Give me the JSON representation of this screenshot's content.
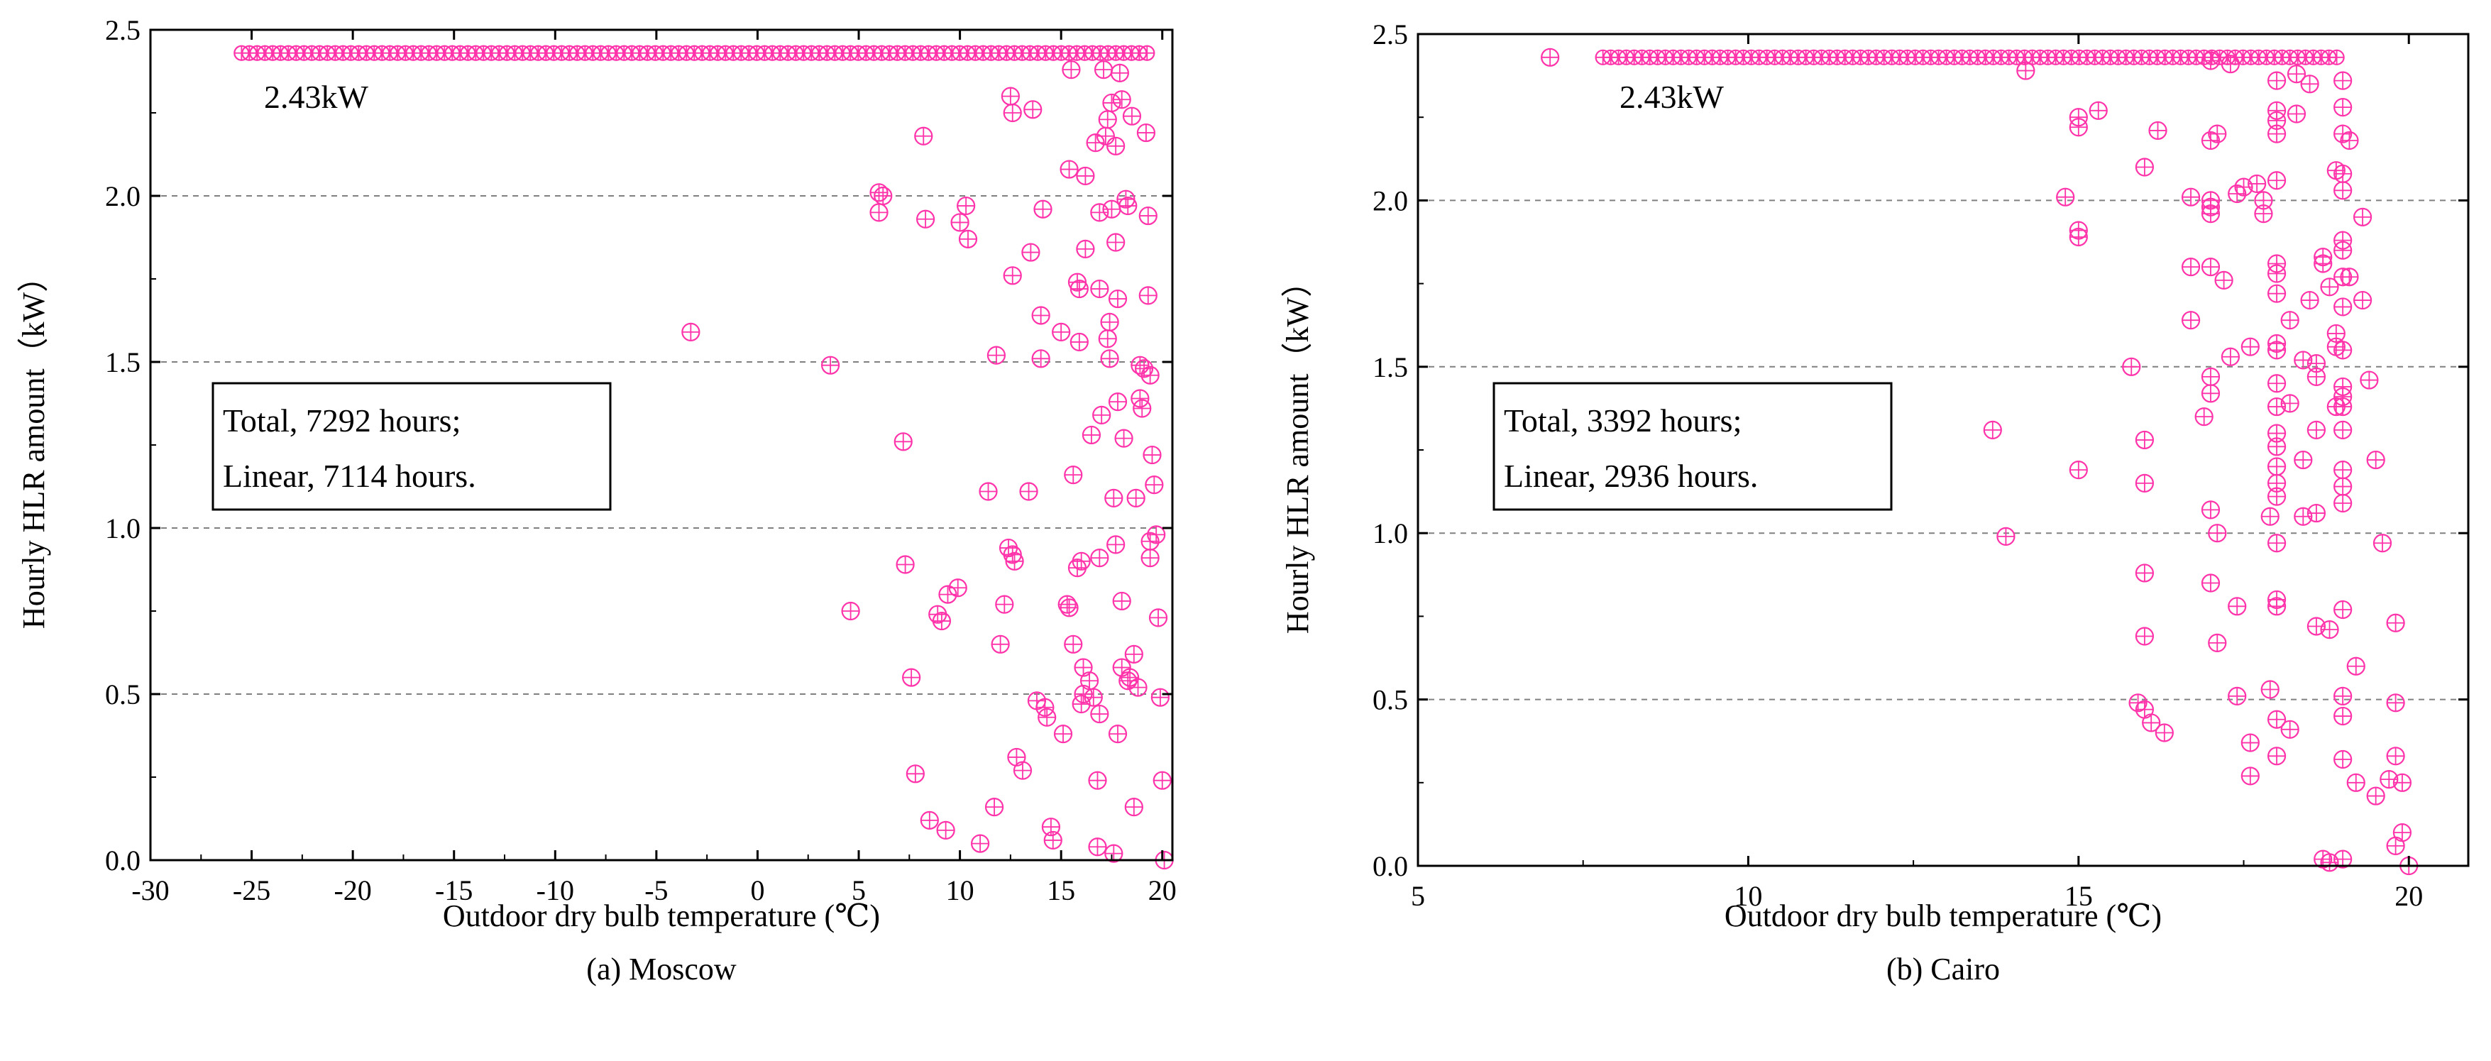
{
  "chart_data": [
    {
      "type": "scatter",
      "caption": "(a) Moscow",
      "xlabel": "Outdoor dry bulb temperature (℃)",
      "ylabel": "Hourly HLR amount（kW）",
      "xlim": [
        -30,
        20.5
      ],
      "ylim": [
        0,
        2.5
      ],
      "xticks": [
        -30,
        -25,
        -20,
        -15,
        -10,
        -5,
        0,
        5,
        10,
        15,
        20
      ],
      "xtick_labels": [
        "-30",
        "-25",
        "-20",
        "-15",
        "-10",
        "-5",
        "0",
        "5",
        "10",
        "15",
        "20"
      ],
      "yticks": [
        0,
        0.5,
        1.0,
        1.5,
        2.0,
        2.5
      ],
      "ytick_labels": [
        "0.0",
        "0.5",
        "1.0",
        "1.5",
        "2.0",
        "2.5"
      ],
      "gridlines_y": [
        0.5,
        1.0,
        1.5,
        2.0
      ],
      "marker_color": "#ff33aa",
      "annotation": "2.43kW",
      "max_value": 2.43,
      "max_line_x": [
        -25.5,
        19.5
      ],
      "note_lines": [
        "Total,   7292 hours;",
        "Linear, 7114 hours."
      ],
      "points": [
        [
          -3.3,
          1.59
        ],
        [
          3.6,
          1.49
        ],
        [
          4.6,
          0.75
        ],
        [
          6,
          2.01
        ],
        [
          6.2,
          2.0
        ],
        [
          6,
          1.95
        ],
        [
          7.2,
          1.26
        ],
        [
          7.3,
          0.89
        ],
        [
          7.6,
          0.55
        ],
        [
          7.8,
          0.26
        ],
        [
          8.2,
          2.18
        ],
        [
          8.3,
          1.93
        ],
        [
          8.5,
          0.12
        ],
        [
          8.9,
          0.74
        ],
        [
          9.1,
          0.72
        ],
        [
          9.3,
          0.09
        ],
        [
          9.4,
          0.8
        ],
        [
          9.9,
          0.82
        ],
        [
          10,
          1.92
        ],
        [
          10.3,
          1.97
        ],
        [
          10.4,
          1.87
        ],
        [
          11,
          0.05
        ],
        [
          11.4,
          1.11
        ],
        [
          11.7,
          0.16
        ],
        [
          11.8,
          1.52
        ],
        [
          12,
          0.65
        ],
        [
          12.2,
          0.77
        ],
        [
          12.5,
          2.3
        ],
        [
          12.6,
          2.25
        ],
        [
          12.4,
          0.94
        ],
        [
          12.6,
          0.92
        ],
        [
          12.7,
          0.9
        ],
        [
          12.6,
          1.76
        ],
        [
          12.8,
          0.31
        ],
        [
          13.1,
          0.27
        ],
        [
          13.4,
          1.11
        ],
        [
          13.6,
          2.26
        ],
        [
          13.5,
          1.83
        ],
        [
          13.8,
          0.48
        ],
        [
          14,
          1.51
        ],
        [
          14,
          1.64
        ],
        [
          14.1,
          1.96
        ],
        [
          14.2,
          0.46
        ],
        [
          14.3,
          0.43
        ],
        [
          14.5,
          0.1
        ],
        [
          14.6,
          0.06
        ],
        [
          15,
          1.59
        ],
        [
          15.1,
          0.38
        ],
        [
          15.3,
          0.77
        ],
        [
          15.4,
          0.76
        ],
        [
          15.5,
          2.38
        ],
        [
          15.4,
          2.08
        ],
        [
          15.6,
          1.16
        ],
        [
          15.6,
          0.65
        ],
        [
          15.8,
          1.74
        ],
        [
          15.9,
          1.72
        ],
        [
          15.9,
          1.56
        ],
        [
          15.8,
          0.88
        ],
        [
          16,
          0.9
        ],
        [
          16.1,
          0.58
        ],
        [
          16.2,
          1.84
        ],
        [
          16.1,
          0.5
        ],
        [
          16,
          0.47
        ],
        [
          16.2,
          2.06
        ],
        [
          16.4,
          0.54
        ],
        [
          16.5,
          1.28
        ],
        [
          16.6,
          0.49
        ],
        [
          16.7,
          2.16
        ],
        [
          16.8,
          0.04
        ],
        [
          16.8,
          0.24
        ],
        [
          16.9,
          1.95
        ],
        [
          16.9,
          1.72
        ],
        [
          16.9,
          0.91
        ],
        [
          17,
          1.34
        ],
        [
          17.1,
          2.38
        ],
        [
          17.2,
          2.18
        ],
        [
          17.3,
          2.23
        ],
        [
          17.3,
          1.57
        ],
        [
          17.4,
          1.62
        ],
        [
          17.4,
          1.51
        ],
        [
          17.5,
          2.28
        ],
        [
          17.5,
          1.96
        ],
        [
          17.6,
          1.09
        ],
        [
          17.6,
          0.02
        ],
        [
          17.7,
          2.15
        ],
        [
          17.7,
          1.86
        ],
        [
          17.7,
          0.95
        ],
        [
          17.8,
          0.38
        ],
        [
          17.8,
          1.38
        ],
        [
          17.8,
          1.69
        ],
        [
          17.9,
          2.37
        ],
        [
          18,
          2.29
        ],
        [
          18,
          0.78
        ],
        [
          18,
          0.58
        ],
        [
          18.1,
          1.27
        ],
        [
          18.2,
          1.99
        ],
        [
          18.3,
          0.54
        ],
        [
          18.3,
          1.97
        ],
        [
          18.4,
          0.55
        ],
        [
          18.5,
          2.24
        ],
        [
          18.6,
          0.62
        ],
        [
          18.6,
          0.16
        ],
        [
          18.7,
          1.09
        ],
        [
          18.8,
          0.52
        ],
        [
          18.9,
          1.49
        ],
        [
          18.9,
          1.39
        ],
        [
          19,
          1.36
        ],
        [
          19.1,
          1.48
        ],
        [
          19.2,
          2.19
        ],
        [
          19.3,
          1.94
        ],
        [
          19.3,
          1.7
        ],
        [
          19.4,
          1.46
        ],
        [
          19.4,
          0.91
        ],
        [
          19.5,
          1.22
        ],
        [
          19.6,
          1.13
        ],
        [
          19.7,
          0.98
        ],
        [
          19.8,
          0.73
        ],
        [
          19.9,
          0.49
        ],
        [
          20,
          0.24
        ],
        [
          20.1,
          0.0
        ],
        [
          19.4,
          0.96
        ],
        [
          16.9,
          0.44
        ]
      ]
    },
    {
      "type": "scatter",
      "caption": "(b) Cairo",
      "xlabel": "Outdoor dry bulb temperature (℃)",
      "ylabel": "Hourly HLR amount（kW）",
      "xlim": [
        5,
        20.9
      ],
      "ylim": [
        0,
        2.5
      ],
      "xticks": [
        5,
        10,
        15,
        20
      ],
      "xtick_labels": [
        "5",
        "10",
        "15",
        "20"
      ],
      "yticks": [
        0,
        0.5,
        1.0,
        1.5,
        2.0,
        2.5
      ],
      "ytick_labels": [
        "0.0",
        "0.5",
        "1.0",
        "1.5",
        "2.0",
        "2.5"
      ],
      "gridlines_y": [
        0.5,
        1.0,
        1.5,
        2.0
      ],
      "marker_color": "#ff33aa",
      "annotation": "2.43kW",
      "max_value": 2.43,
      "max_line_x": [
        7.8,
        19
      ],
      "note_lines": [
        "Total,    3392  hours;",
        "Linear,  2936  hours."
      ],
      "points": [
        [
          7,
          2.43
        ],
        [
          14.2,
          2.39
        ],
        [
          13.7,
          1.31
        ],
        [
          13.9,
          0.99
        ],
        [
          14.8,
          2.01
        ],
        [
          15,
          2.25
        ],
        [
          15,
          2.22
        ],
        [
          15,
          1.91
        ],
        [
          15,
          1.89
        ],
        [
          15,
          1.19
        ],
        [
          15.3,
          2.27
        ],
        [
          15.8,
          1.5
        ],
        [
          15.9,
          0.49
        ],
        [
          16,
          0.47
        ],
        [
          16,
          2.1
        ],
        [
          16,
          1.28
        ],
        [
          16,
          1.15
        ],
        [
          16,
          0.88
        ],
        [
          16,
          0.69
        ],
        [
          16.1,
          0.43
        ],
        [
          16.2,
          2.21
        ],
        [
          16.3,
          0.4
        ],
        [
          16.7,
          2.01
        ],
        [
          16.7,
          1.8
        ],
        [
          16.7,
          1.64
        ],
        [
          17,
          2.42
        ],
        [
          17,
          2.18
        ],
        [
          17,
          2.0
        ],
        [
          17,
          1.98
        ],
        [
          17,
          1.96
        ],
        [
          17,
          1.8
        ],
        [
          17,
          1.47
        ],
        [
          16.9,
          1.35
        ],
        [
          17,
          1.42
        ],
        [
          17,
          1.07
        ],
        [
          17,
          0.85
        ],
        [
          17.1,
          2.2
        ],
        [
          17.1,
          1.0
        ],
        [
          17.1,
          0.67
        ],
        [
          17.2,
          1.76
        ],
        [
          17.3,
          1.53
        ],
        [
          17.3,
          2.41
        ],
        [
          17.4,
          2.02
        ],
        [
          17.4,
          0.78
        ],
        [
          17.4,
          0.51
        ],
        [
          17.5,
          2.04
        ],
        [
          17.6,
          1.56
        ],
        [
          17.6,
          0.37
        ],
        [
          17.6,
          0.27
        ],
        [
          17.7,
          2.05
        ],
        [
          17.8,
          2.0
        ],
        [
          17.8,
          1.96
        ],
        [
          17.9,
          1.05
        ],
        [
          17.9,
          0.53
        ],
        [
          18,
          2.36
        ],
        [
          18,
          2.27
        ],
        [
          18,
          2.24
        ],
        [
          18,
          2.2
        ],
        [
          18,
          2.06
        ],
        [
          18,
          1.81
        ],
        [
          18,
          1.78
        ],
        [
          18,
          1.72
        ],
        [
          18,
          1.57
        ],
        [
          18,
          1.55
        ],
        [
          18,
          1.45
        ],
        [
          18,
          1.38
        ],
        [
          18,
          1.3
        ],
        [
          18,
          1.26
        ],
        [
          18,
          1.2
        ],
        [
          18,
          1.15
        ],
        [
          18,
          1.11
        ],
        [
          18,
          0.97
        ],
        [
          18,
          0.8
        ],
        [
          18,
          0.78
        ],
        [
          18,
          0.44
        ],
        [
          18,
          0.33
        ],
        [
          18.2,
          1.64
        ],
        [
          18.2,
          1.39
        ],
        [
          18.2,
          0.41
        ],
        [
          18.3,
          2.38
        ],
        [
          18.3,
          2.26
        ],
        [
          18.4,
          1.52
        ],
        [
          18.4,
          1.05
        ],
        [
          18.4,
          1.22
        ],
        [
          18.5,
          2.35
        ],
        [
          18.5,
          1.7
        ],
        [
          18.6,
          1.51
        ],
        [
          18.6,
          1.47
        ],
        [
          18.6,
          1.31
        ],
        [
          18.6,
          1.06
        ],
        [
          18.6,
          0.72
        ],
        [
          18.7,
          1.83
        ],
        [
          18.7,
          1.81
        ],
        [
          18.7,
          0.02
        ],
        [
          18.8,
          1.74
        ],
        [
          18.8,
          0.01
        ],
        [
          18.8,
          0.71
        ],
        [
          18.9,
          2.09
        ],
        [
          18.9,
          1.6
        ],
        [
          18.9,
          1.56
        ],
        [
          18.9,
          1.38
        ],
        [
          19,
          2.36
        ],
        [
          19,
          2.28
        ],
        [
          19,
          2.2
        ],
        [
          19,
          2.08
        ],
        [
          19,
          2.03
        ],
        [
          19,
          1.88
        ],
        [
          19,
          1.85
        ],
        [
          19,
          1.77
        ],
        [
          19,
          1.68
        ],
        [
          19,
          1.55
        ],
        [
          19,
          1.44
        ],
        [
          19,
          1.41
        ],
        [
          19,
          1.38
        ],
        [
          19,
          1.31
        ],
        [
          19,
          1.19
        ],
        [
          19,
          1.14
        ],
        [
          19,
          1.09
        ],
        [
          19,
          0.77
        ],
        [
          19,
          0.51
        ],
        [
          19,
          0.45
        ],
        [
          19,
          0.32
        ],
        [
          19,
          0.02
        ],
        [
          19.1,
          2.18
        ],
        [
          19.1,
          1.77
        ],
        [
          19.2,
          0.6
        ],
        [
          19.2,
          0.25
        ],
        [
          19.3,
          1.95
        ],
        [
          19.3,
          1.7
        ],
        [
          19.4,
          1.46
        ],
        [
          19.5,
          1.22
        ],
        [
          19.5,
          0.21
        ],
        [
          19.6,
          0.97
        ],
        [
          19.7,
          0.26
        ],
        [
          19.8,
          0.73
        ],
        [
          19.8,
          0.49
        ],
        [
          19.8,
          0.33
        ],
        [
          19.9,
          0.25
        ],
        [
          19.9,
          0.1
        ],
        [
          19.8,
          0.06
        ],
        [
          20,
          0.0
        ]
      ]
    }
  ]
}
